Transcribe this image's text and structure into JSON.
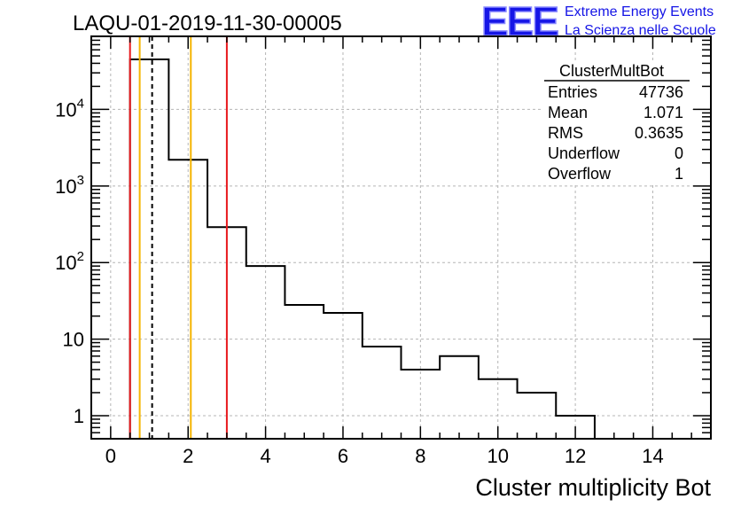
{
  "chart_data": {
    "type": "histogram",
    "title": "LAQU-01-2019-11-30-00005",
    "xlabel": "Cluster multiplicity Bot",
    "ylabel": "",
    "x_scale": "linear",
    "y_scale": "log",
    "xlim": [
      -0.5,
      15.5
    ],
    "ylim": [
      0.5,
      90000
    ],
    "grid": true,
    "bin_edges": [
      0.5,
      1.5,
      2.5,
      3.5,
      4.5,
      5.5,
      6.5,
      7.5,
      8.5,
      9.5,
      10.5,
      11.5,
      12.5
    ],
    "values": [
      45000,
      2200,
      290,
      90,
      28,
      22,
      8,
      4,
      6,
      3,
      2,
      1
    ],
    "x_ticks": [
      0,
      2,
      4,
      6,
      8,
      10,
      12,
      14
    ],
    "x_tick_labels": [
      "0",
      "2",
      "4",
      "6",
      "8",
      "10",
      "12",
      "14"
    ],
    "y_ticks": [
      1,
      10,
      100,
      1000,
      10000
    ],
    "y_tick_labels": [
      {
        "base": "1",
        "exp": ""
      },
      {
        "base": "10",
        "exp": ""
      },
      {
        "base": "10",
        "exp": "2"
      },
      {
        "base": "10",
        "exp": "3"
      },
      {
        "base": "10",
        "exp": "4"
      }
    ],
    "vertical_lines": [
      {
        "x": 0.5,
        "color": "#e8191d",
        "style": "solid"
      },
      {
        "x": 0.75,
        "color": "#f5b400",
        "style": "solid"
      },
      {
        "x": 1.071,
        "color": "#000000",
        "style": "dashed"
      },
      {
        "x": 2.07,
        "color": "#f5b400",
        "style": "solid"
      },
      {
        "x": 3.0,
        "color": "#e8191d",
        "style": "solid"
      }
    ],
    "stats_box": {
      "title": "ClusterMultBot",
      "rows": [
        {
          "label": "Entries",
          "value": "47736"
        },
        {
          "label": "Mean",
          "value": "1.071"
        },
        {
          "label": "RMS",
          "value": "0.3635"
        },
        {
          "label": "Underflow",
          "value": "0"
        },
        {
          "label": "Overflow",
          "value": "1"
        }
      ]
    }
  },
  "logo": {
    "letters": "EEE",
    "line1": "Extreme Energy Events",
    "line2": "La Scienza nelle Scuole",
    "color": "#1515e6"
  }
}
